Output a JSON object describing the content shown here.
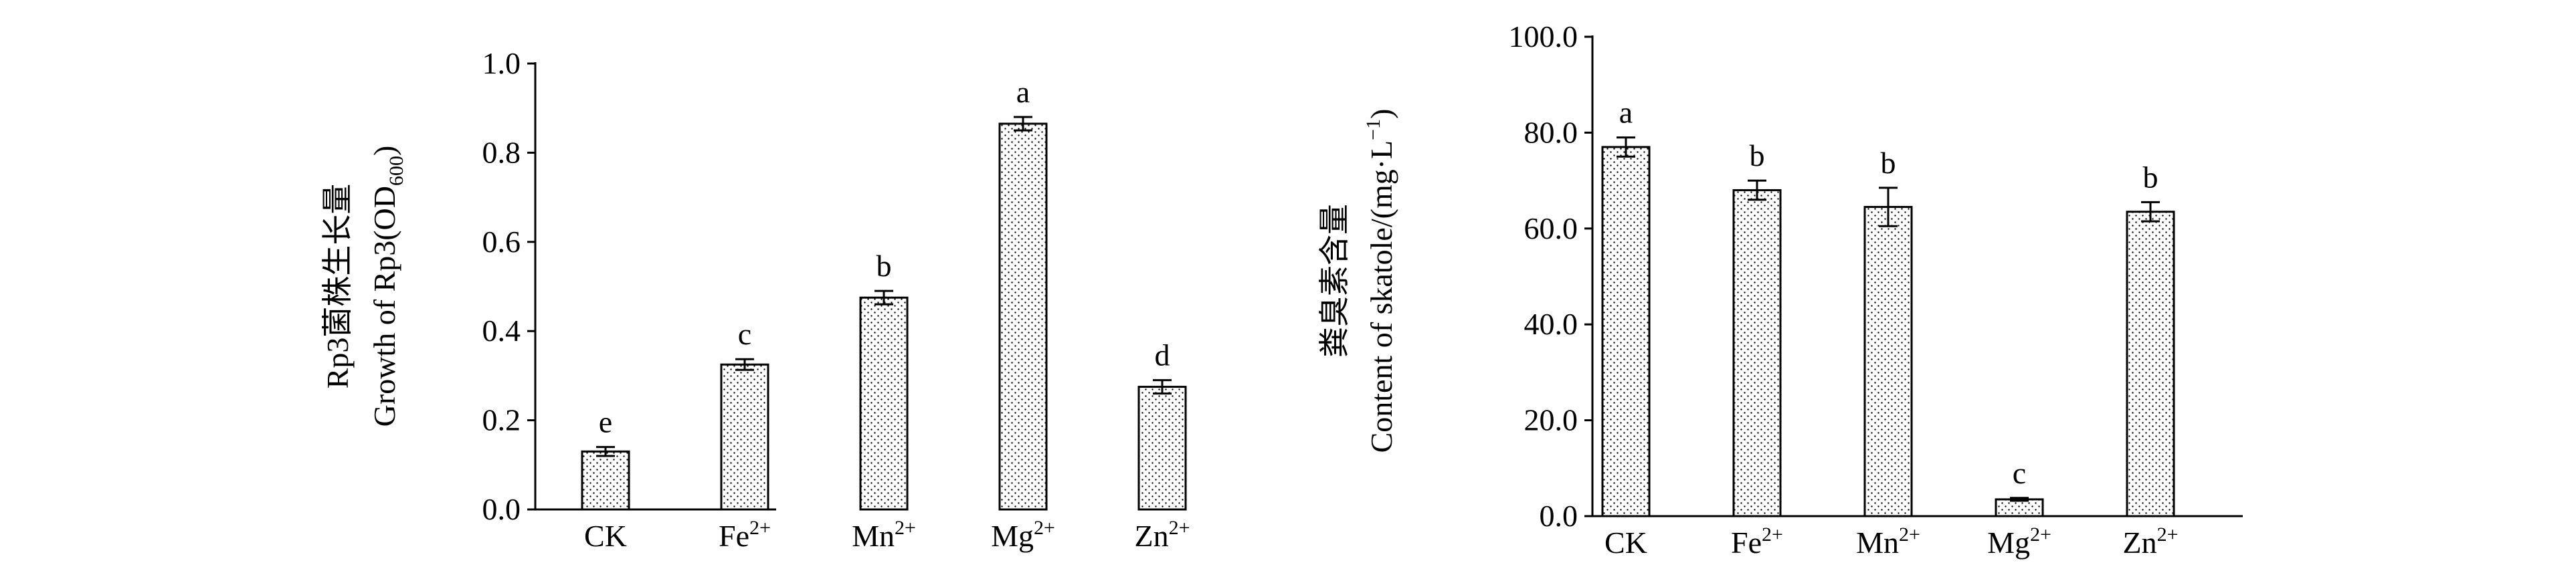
{
  "chart_data": [
    {
      "type": "bar",
      "title": "",
      "xlabel": "",
      "ylabel_line1": "Rp3菌株生长量",
      "ylabel_line2_main": "Growth of Rp3(OD",
      "ylabel_line2_sub": "600",
      "ylabel_line2_end": ")",
      "categories": [
        {
          "base": "CK",
          "sup": ""
        },
        {
          "base": "Fe",
          "sup": "2+"
        },
        {
          "base": "Mn",
          "sup": "2+"
        },
        {
          "base": "Mg",
          "sup": "2+"
        },
        {
          "base": "Zn",
          "sup": "2+"
        }
      ],
      "values": [
        0.13,
        0.325,
        0.475,
        0.865,
        0.275
      ],
      "errors": [
        0.01,
        0.012,
        0.015,
        0.015,
        0.015
      ],
      "letters": [
        "e",
        "c",
        "b",
        "a",
        "d"
      ],
      "ylim": [
        0,
        1.0
      ],
      "yticks": [
        "0.0",
        "0.2",
        "0.4",
        "0.6",
        "0.8",
        "1.0"
      ],
      "grid": false,
      "bar_fill": "dotted pattern"
    },
    {
      "type": "bar",
      "title": "",
      "xlabel": "",
      "ylabel_line1": "粪臭素含量",
      "ylabel_line2_main": "Content of skatole/(mg·L",
      "ylabel_line2_sup": "−1",
      "ylabel_line2_end": ")",
      "categories": [
        {
          "base": "CK",
          "sup": ""
        },
        {
          "base": "Fe",
          "sup": "2+"
        },
        {
          "base": "Mn",
          "sup": "2+"
        },
        {
          "base": "Mg",
          "sup": "2+"
        },
        {
          "base": "Zn",
          "sup": "2+"
        }
      ],
      "values": [
        77.0,
        68.0,
        64.5,
        3.5,
        63.5
      ],
      "errors": [
        2.0,
        2.0,
        4.0,
        0.3,
        2.0
      ],
      "letters": [
        "a",
        "b",
        "b",
        "c",
        "b"
      ],
      "ylim": [
        0,
        100.0
      ],
      "yticks": [
        "0.0",
        "20.0",
        "40.0",
        "60.0",
        "80.0",
        "100.0"
      ],
      "grid": false,
      "bar_fill": "dotted pattern"
    }
  ]
}
